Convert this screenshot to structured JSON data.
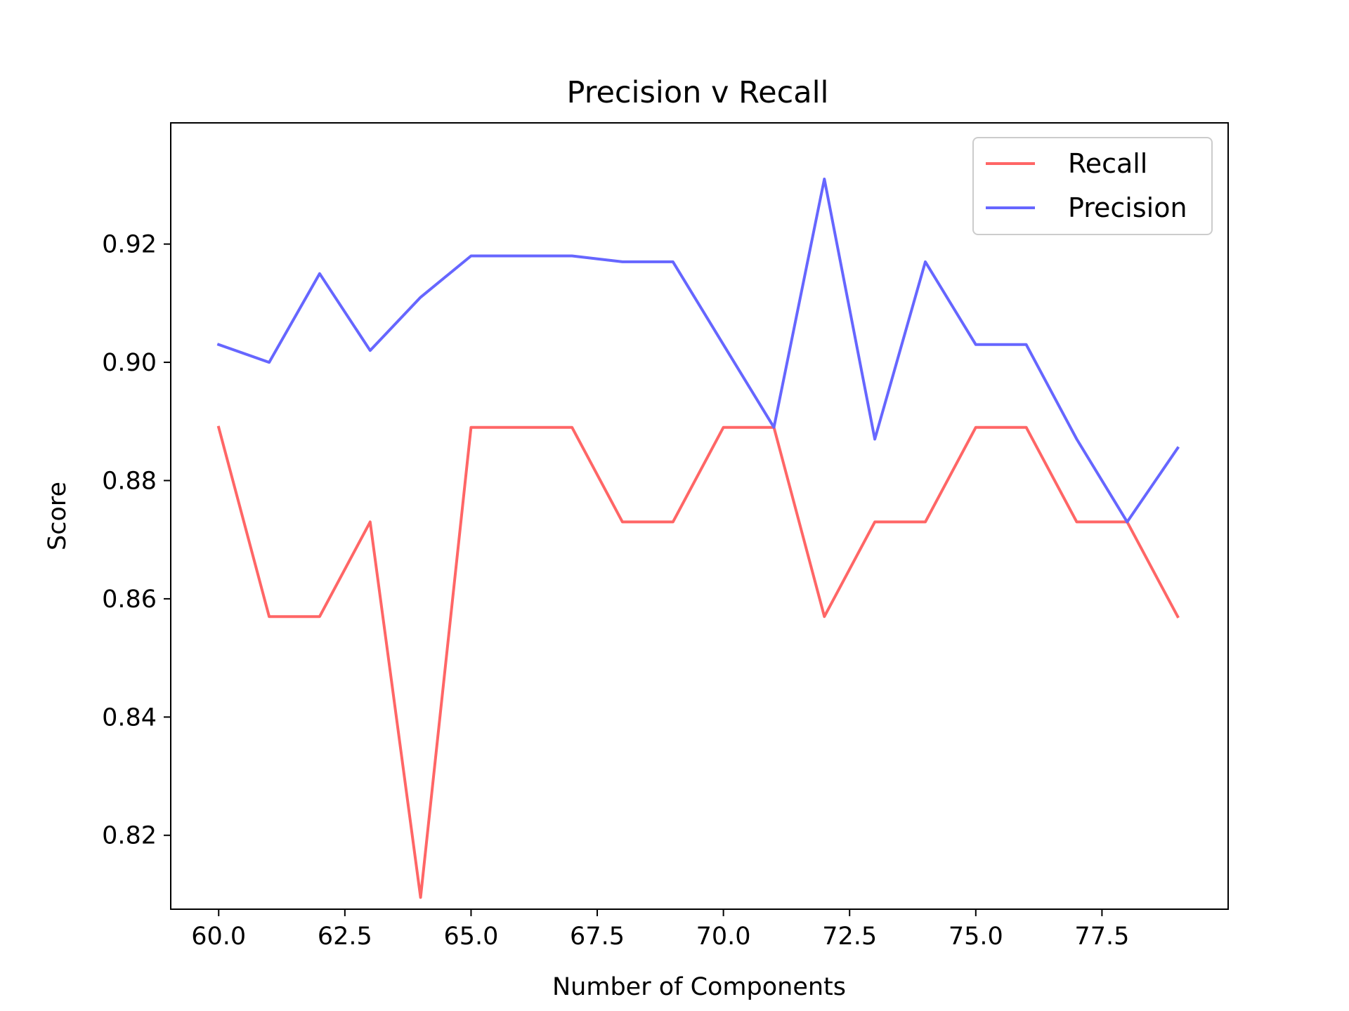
{
  "chart_data": {
    "type": "line",
    "title": "Precision v Recall",
    "xlabel": "Number of Components",
    "ylabel": "Score",
    "xlim": [
      59.05,
      80.0
    ],
    "ylim": [
      0.8075,
      0.9405
    ],
    "xticks": [
      60.0,
      62.5,
      65.0,
      67.5,
      70.0,
      72.5,
      75.0,
      77.5
    ],
    "xtick_labels": [
      "60.0",
      "62.5",
      "65.0",
      "67.5",
      "70.0",
      "72.5",
      "75.0",
      "77.5"
    ],
    "yticks": [
      0.82,
      0.84,
      0.86,
      0.88,
      0.9,
      0.92
    ],
    "ytick_labels": [
      "0.82",
      "0.84",
      "0.86",
      "0.88",
      "0.90",
      "0.92"
    ],
    "grid": false,
    "legend_position": "top-right",
    "x": [
      60,
      61,
      62,
      63,
      64,
      65,
      66,
      67,
      68,
      69,
      70,
      71,
      72,
      73,
      74,
      75,
      76,
      77,
      78,
      79
    ],
    "series": [
      {
        "name": "Recall",
        "color": "#ff6666",
        "values": [
          0.889,
          0.857,
          0.857,
          0.873,
          0.8095,
          0.889,
          0.889,
          0.889,
          0.873,
          0.873,
          0.889,
          0.889,
          0.857,
          0.873,
          0.873,
          0.889,
          0.889,
          0.873,
          0.873,
          0.857
        ]
      },
      {
        "name": "Precision",
        "color": "#6666ff",
        "values": [
          0.903,
          0.9,
          0.915,
          0.902,
          0.911,
          0.918,
          0.918,
          0.918,
          0.917,
          0.917,
          0.903,
          0.889,
          0.931,
          0.887,
          0.917,
          0.903,
          0.903,
          0.887,
          0.873,
          0.8855
        ]
      }
    ]
  }
}
